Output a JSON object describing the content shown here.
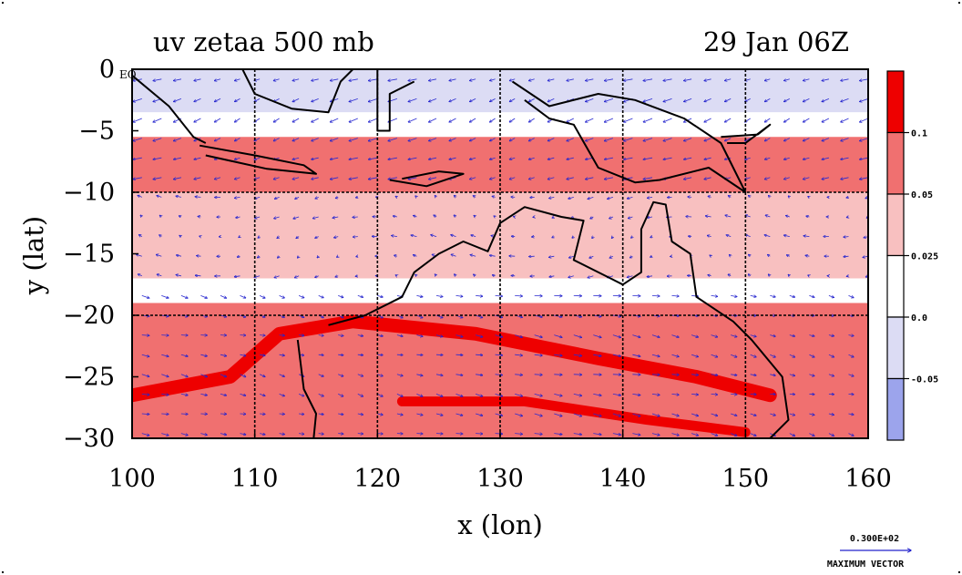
{
  "chart_data": {
    "type": "heatmap",
    "title": "uv zetaa 500 mb",
    "datetime": "29 Jan 06Z",
    "xlabel": "x (lon)",
    "ylabel": "y (lat)",
    "xlim": [
      100,
      160
    ],
    "ylim": [
      -30,
      0
    ],
    "x_ticks": [
      "100",
      "110",
      "120",
      "130",
      "140",
      "150",
      "160"
    ],
    "y_ticks": [
      "0",
      "−5",
      "−10",
      "−15",
      "−20",
      "−25",
      "−30"
    ],
    "y_tick_values": [
      0,
      -5,
      -10,
      -15,
      -20,
      -25,
      -30
    ],
    "x_tick_values": [
      100,
      110,
      120,
      130,
      140,
      150,
      160
    ],
    "eq_label": "EQ",
    "grid": true,
    "colorbar": {
      "levels": [
        "0.1",
        "0.05",
        "0.025",
        "0.0",
        "-0.05"
      ],
      "colors": [
        "#ee0000",
        "#f07070",
        "#f8c0c0",
        "#ffffff",
        "#dcdcf4",
        "#9ca4ec"
      ]
    },
    "vector_legend": {
      "value": "0.300E+02",
      "label": "MAXIMUM VECTOR"
    },
    "bands": [
      {
        "lat_top": 0,
        "lat_bottom": -3.5,
        "level": 4
      },
      {
        "lat_top": -3.5,
        "lat_bottom": -5.5,
        "level": 3
      },
      {
        "lat_top": -5.5,
        "lat_bottom": -10,
        "level": 1
      },
      {
        "lat_top": -10,
        "lat_bottom": -13,
        "level": 2
      },
      {
        "lat_top": -13,
        "lat_bottom": -17,
        "level": 2
      },
      {
        "lat_top": -17,
        "lat_bottom": -19,
        "level": 3
      },
      {
        "lat_top": -19,
        "lat_bottom": -30,
        "level": 1
      }
    ],
    "jets": [
      {
        "points": [
          [
            100,
            -26.5
          ],
          [
            108,
            -25
          ],
          [
            112,
            -21.5
          ],
          [
            118,
            -20.5
          ],
          [
            128,
            -21.5
          ],
          [
            138,
            -23.5
          ],
          [
            146,
            -25
          ],
          [
            152,
            -26.5
          ]
        ],
        "width_deg": 1.1,
        "level": 0
      },
      {
        "points": [
          [
            122,
            -27
          ],
          [
            132,
            -27
          ],
          [
            142,
            -28.5
          ],
          [
            150,
            -29.5
          ]
        ],
        "width_deg": 0.8,
        "level": 0
      }
    ],
    "coastlines": [
      {
        "name": "sumatra",
        "points": [
          [
            100,
            -0.5
          ],
          [
            103,
            -3
          ],
          [
            105,
            -5.5
          ],
          [
            106,
            -6
          ]
        ]
      },
      {
        "name": "java",
        "points": [
          [
            105.5,
            -6.2
          ],
          [
            110,
            -7
          ],
          [
            114,
            -7.8
          ],
          [
            115,
            -8.5
          ],
          [
            111,
            -8.1
          ],
          [
            106,
            -7
          ]
        ]
      },
      {
        "name": "borneo",
        "points": [
          [
            109,
            0
          ],
          [
            110,
            -2
          ],
          [
            113,
            -3.2
          ],
          [
            116,
            -3.5
          ],
          [
            117,
            -1
          ],
          [
            118,
            0
          ]
        ]
      },
      {
        "name": "sulawesi",
        "points": [
          [
            120,
            0
          ],
          [
            120,
            -5
          ],
          [
            121,
            -5
          ],
          [
            121,
            -2
          ],
          [
            123,
            -1
          ]
        ]
      },
      {
        "name": "timor",
        "points": [
          [
            121,
            -9
          ],
          [
            124,
            -9.5
          ],
          [
            127,
            -8.5
          ],
          [
            125,
            -8.3
          ],
          [
            122,
            -8.9
          ]
        ]
      },
      {
        "name": "new-guinea",
        "points": [
          [
            131,
            -1
          ],
          [
            134,
            -3
          ],
          [
            138,
            -2
          ],
          [
            141,
            -2.5
          ],
          [
            145,
            -4
          ],
          [
            148,
            -6
          ],
          [
            150,
            -10
          ],
          [
            147,
            -8
          ],
          [
            143,
            -9
          ],
          [
            141,
            -9.2
          ],
          [
            138,
            -8
          ],
          [
            136,
            -4.5
          ],
          [
            134,
            -4
          ],
          [
            132,
            -2.5
          ]
        ]
      },
      {
        "name": "new-britain",
        "points": [
          [
            148,
            -5.5
          ],
          [
            151,
            -5.3
          ],
          [
            152,
            -4.5
          ],
          [
            150,
            -6
          ],
          [
            148.5,
            -6
          ]
        ]
      },
      {
        "name": "australia",
        "points": [
          [
            113.5,
            -22
          ],
          [
            114,
            -26
          ],
          [
            115,
            -28
          ],
          [
            114.8,
            -30
          ],
          [
            124,
            -30
          ],
          [
            131,
            -30
          ],
          [
            138,
            -30
          ],
          [
            152,
            -30
          ],
          [
            153.5,
            -28.5
          ],
          [
            153,
            -25
          ],
          [
            150.5,
            -22
          ],
          [
            149,
            -20.5
          ],
          [
            146,
            -18.5
          ],
          [
            145.5,
            -15
          ],
          [
            144,
            -14
          ],
          [
            143.5,
            -11
          ],
          [
            142.5,
            -10.8
          ],
          [
            141.5,
            -13
          ],
          [
            141.5,
            -16.5
          ],
          [
            140,
            -17.5
          ],
          [
            139,
            -17
          ],
          [
            136,
            -15.5
          ],
          [
            136.8,
            -12.3
          ],
          [
            135,
            -12
          ],
          [
            132,
            -11.2
          ],
          [
            130,
            -12.5
          ],
          [
            129,
            -14.8
          ],
          [
            127,
            -14
          ],
          [
            125,
            -15
          ],
          [
            123,
            -16.5
          ],
          [
            122,
            -18.5
          ],
          [
            119,
            -20
          ],
          [
            116,
            -20.8
          ]
        ]
      }
    ]
  }
}
